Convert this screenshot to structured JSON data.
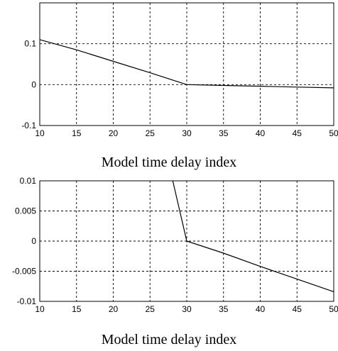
{
  "chart_data": [
    {
      "type": "line",
      "xlabel": "Model time delay index",
      "ylabel": "",
      "title": "",
      "xlim": [
        10,
        50
      ],
      "ylim": [
        -0.1,
        0.2
      ],
      "xticks": [
        10,
        15,
        20,
        25,
        30,
        35,
        40,
        45,
        50
      ],
      "yticks": [
        -0.1,
        0,
        0.1
      ],
      "ytick_labels": [
        "-0.1",
        "0",
        "0.1"
      ],
      "grid": true,
      "series": [
        {
          "x": [
            10,
            15,
            20,
            25,
            30,
            35,
            40,
            45,
            50
          ],
          "y": [
            0.11,
            0.085,
            0.057,
            0.029,
            0.0,
            -0.002,
            -0.004,
            -0.006,
            -0.008
          ]
        }
      ]
    },
    {
      "type": "line",
      "xlabel": "Model time delay index",
      "ylabel": "",
      "title": "",
      "xlim": [
        10,
        50
      ],
      "ylim": [
        -0.01,
        0.01
      ],
      "xticks": [
        10,
        15,
        20,
        25,
        30,
        35,
        40,
        45,
        50
      ],
      "yticks": [
        0.01,
        0.005,
        0,
        -0.005,
        -0.01
      ],
      "ytick_labels": [
        "0.01",
        "0.005",
        "0",
        "-0.005",
        "-0.01"
      ],
      "grid": true,
      "series": [
        {
          "x": [
            28.1,
            30,
            35,
            40,
            45,
            50
          ],
          "y": [
            0.01,
            0.0,
            -0.002,
            -0.0042,
            -0.0063,
            -0.0084
          ]
        }
      ]
    }
  ]
}
